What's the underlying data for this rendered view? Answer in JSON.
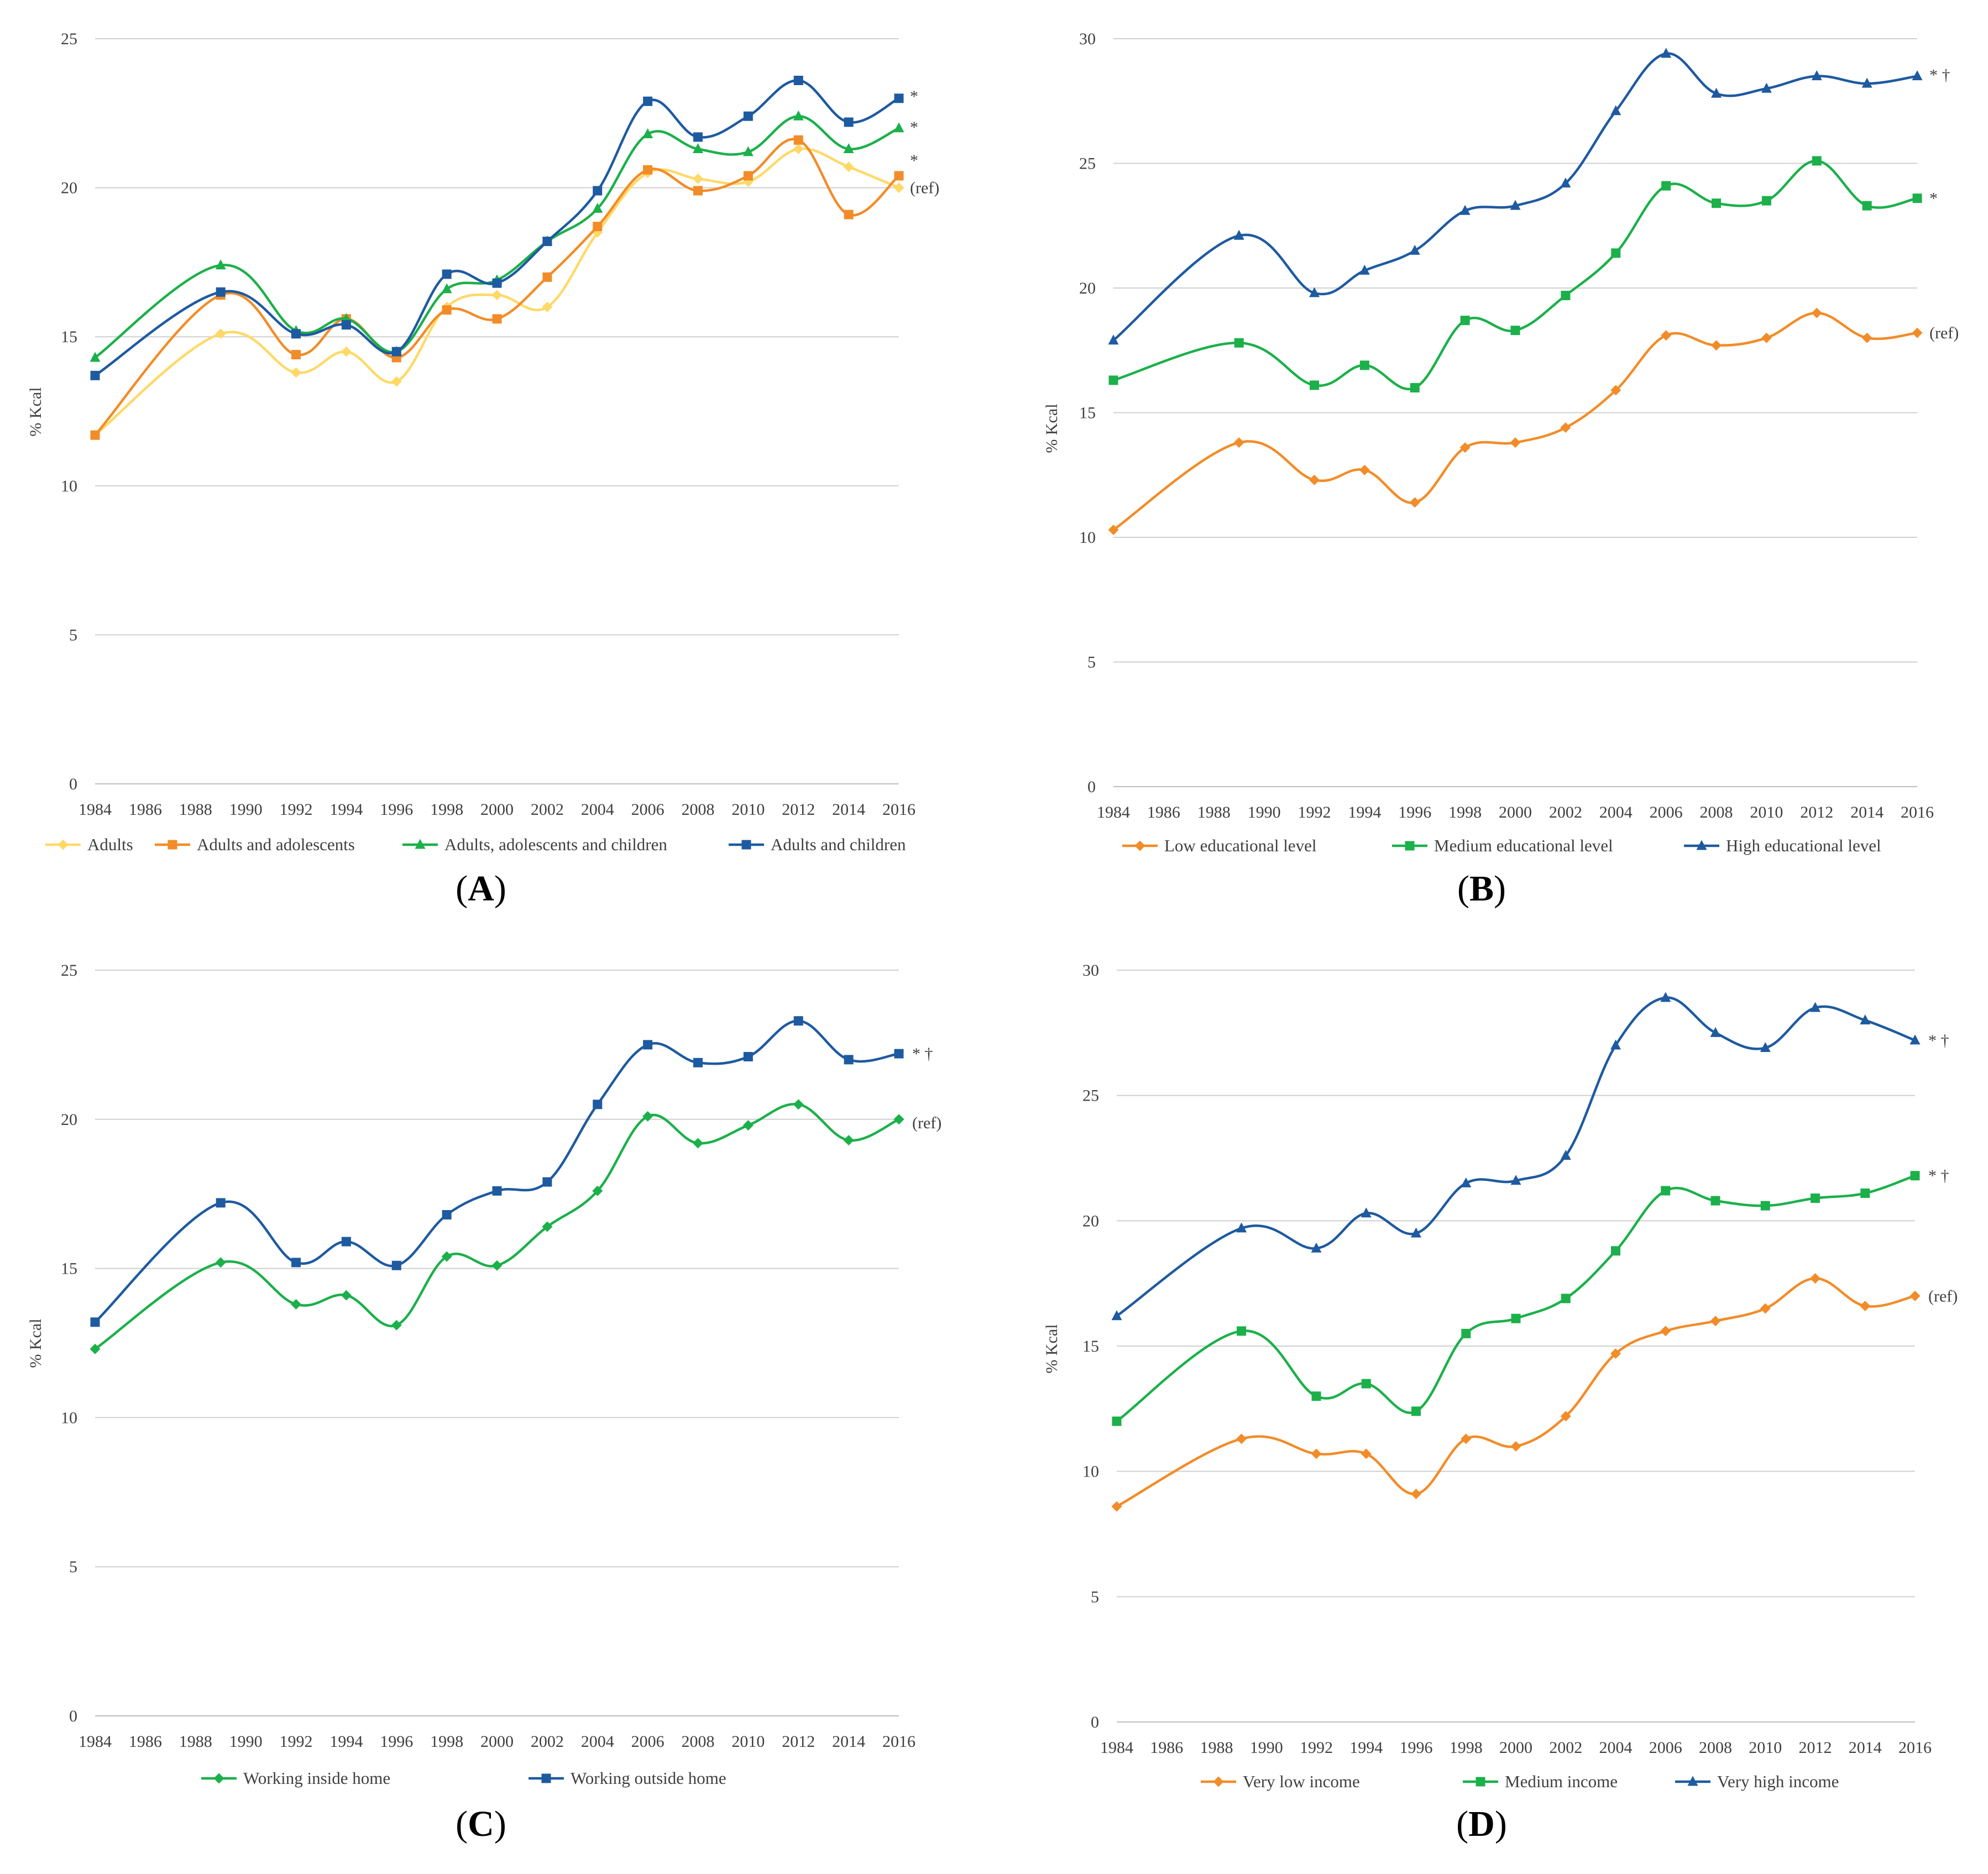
{
  "years": [
    "1984",
    "1986",
    "1988",
    "1990",
    "1992",
    "1994",
    "1996",
    "1998",
    "2000",
    "2002",
    "2004",
    "2006",
    "2008",
    "2010",
    "2012",
    "2014",
    "2016"
  ],
  "chart_data": [
    {
      "id": "A",
      "type": "line",
      "panel_label": "A",
      "ylabel": "% Kcal",
      "ylim": [
        0,
        25
      ],
      "yticks": [
        "0",
        "5",
        "10",
        "15",
        "20",
        "25"
      ],
      "xlim": [
        1984,
        2016
      ],
      "annotations": [
        "*",
        "*",
        "*",
        "(ref)"
      ],
      "series": [
        {
          "name": "Adults",
          "color": "#FFD966",
          "marker": "diamond",
          "x": [
            1984,
            1989,
            1992,
            1994,
            1996,
            1998,
            2000,
            2002,
            2004,
            2006,
            2008,
            2010,
            2012,
            2014,
            2016
          ],
          "values": [
            11.7,
            15.1,
            13.8,
            14.5,
            13.5,
            16.0,
            16.4,
            16.0,
            18.5,
            20.5,
            20.3,
            20.2,
            21.3,
            20.7,
            20.0
          ],
          "end_label": "(ref)"
        },
        {
          "name": "Adults and adolescents",
          "color": "#F28C28",
          "marker": "square",
          "x": [
            1984,
            1989,
            1992,
            1994,
            1996,
            1998,
            2000,
            2002,
            2004,
            2006,
            2008,
            2010,
            2012,
            2014,
            2016
          ],
          "values": [
            11.7,
            16.4,
            14.4,
            15.6,
            14.3,
            15.9,
            15.6,
            17.0,
            18.7,
            20.6,
            19.9,
            20.4,
            21.6,
            19.1,
            20.4
          ],
          "end_label": "*"
        },
        {
          "name": "Adults, adolescents and children",
          "color": "#1BB04A",
          "marker": "triangle",
          "x": [
            1984,
            1989,
            1992,
            1994,
            1996,
            1998,
            2000,
            2002,
            2004,
            2006,
            2008,
            2010,
            2012,
            2014,
            2016
          ],
          "values": [
            14.3,
            17.4,
            15.2,
            15.6,
            14.5,
            16.6,
            16.9,
            18.2,
            19.3,
            21.8,
            21.3,
            21.2,
            22.4,
            21.3,
            22.0
          ],
          "end_label": "*"
        },
        {
          "name": "Adults and children",
          "color": "#1E5AA0",
          "marker": "square",
          "x": [
            1984,
            1989,
            1992,
            1994,
            1996,
            1998,
            2000,
            2002,
            2004,
            2006,
            2008,
            2010,
            2012,
            2014,
            2016
          ],
          "values": [
            13.7,
            16.5,
            15.1,
            15.4,
            14.5,
            17.1,
            16.8,
            18.2,
            19.9,
            22.9,
            21.7,
            22.4,
            23.6,
            22.2,
            23.0
          ],
          "end_label": "*"
        }
      ]
    },
    {
      "id": "B",
      "type": "line",
      "panel_label": "B",
      "ylabel": "% Kcal",
      "ylim": [
        0,
        30
      ],
      "yticks": [
        "0",
        "5",
        "10",
        "15",
        "20",
        "25",
        "30"
      ],
      "xlim": [
        1984,
        2016
      ],
      "annotations": [
        "* †",
        "*",
        "(ref)"
      ],
      "series": [
        {
          "name": "Low educational level",
          "color": "#F28C28",
          "marker": "diamond",
          "x": [
            1984,
            1989,
            1992,
            1994,
            1996,
            1998,
            2000,
            2002,
            2004,
            2006,
            2008,
            2010,
            2012,
            2014,
            2016
          ],
          "values": [
            10.3,
            13.8,
            12.3,
            12.7,
            11.4,
            13.6,
            13.8,
            14.4,
            15.9,
            18.1,
            17.7,
            18.0,
            19.0,
            18.0,
            18.2
          ],
          "end_label": "(ref)"
        },
        {
          "name": "Medium educational level",
          "color": "#1BB04A",
          "marker": "square",
          "x": [
            1984,
            1989,
            1992,
            1994,
            1996,
            1998,
            2000,
            2002,
            2004,
            2006,
            2008,
            2010,
            2012,
            2014,
            2016
          ],
          "values": [
            16.3,
            17.8,
            16.1,
            16.9,
            16.0,
            18.7,
            18.3,
            19.7,
            21.4,
            24.1,
            23.4,
            23.5,
            25.1,
            23.3,
            23.6
          ],
          "end_label": "*"
        },
        {
          "name": "High educational level",
          "color": "#1E5AA0",
          "marker": "triangle",
          "x": [
            1984,
            1989,
            1992,
            1994,
            1996,
            1998,
            2000,
            2002,
            2004,
            2006,
            2008,
            2010,
            2012,
            2014,
            2016
          ],
          "values": [
            17.9,
            22.1,
            19.8,
            20.7,
            21.5,
            23.1,
            23.3,
            24.2,
            27.1,
            29.4,
            27.8,
            28.0,
            28.5,
            28.2,
            28.5
          ],
          "end_label": "* †"
        }
      ]
    },
    {
      "id": "C",
      "type": "line",
      "panel_label": "C",
      "ylabel": "% Kcal",
      "ylim": [
        0,
        25
      ],
      "yticks": [
        "0",
        "5",
        "10",
        "15",
        "20",
        "25"
      ],
      "xlim": [
        1984,
        2016
      ],
      "annotations": [
        "* †",
        "(ref)"
      ],
      "series": [
        {
          "name": "Working inside home",
          "color": "#1BB04A",
          "marker": "diamond",
          "x": [
            1984,
            1989,
            1992,
            1994,
            1996,
            1998,
            2000,
            2002,
            2004,
            2006,
            2008,
            2010,
            2012,
            2014,
            2016
          ],
          "values": [
            12.3,
            15.2,
            13.8,
            14.1,
            13.1,
            15.4,
            15.1,
            16.4,
            17.6,
            20.1,
            19.2,
            19.8,
            20.5,
            19.3,
            20.0
          ],
          "end_label": "(ref)"
        },
        {
          "name": "Working outside home",
          "color": "#1E5AA0",
          "marker": "square",
          "x": [
            1984,
            1989,
            1992,
            1994,
            1996,
            1998,
            2000,
            2002,
            2004,
            2006,
            2008,
            2010,
            2012,
            2014,
            2016
          ],
          "values": [
            13.2,
            17.2,
            15.2,
            15.9,
            15.1,
            16.8,
            17.6,
            17.9,
            20.5,
            22.5,
            21.9,
            22.1,
            23.3,
            22.0,
            22.2
          ],
          "end_label": "* †"
        }
      ]
    },
    {
      "id": "D",
      "type": "line",
      "panel_label": "D",
      "ylabel": "% Kcal",
      "ylim": [
        0,
        30
      ],
      "yticks": [
        "0",
        "5",
        "10",
        "15",
        "20",
        "25",
        "30"
      ],
      "xlim": [
        1984,
        2016
      ],
      "annotations": [
        "* †",
        "* †",
        "(ref)"
      ],
      "series": [
        {
          "name": "Very low income",
          "color": "#F28C28",
          "marker": "diamond",
          "x": [
            1984,
            1989,
            1992,
            1994,
            1996,
            1998,
            2000,
            2002,
            2004,
            2006,
            2008,
            2010,
            2012,
            2014,
            2016
          ],
          "values": [
            8.6,
            11.3,
            10.7,
            10.7,
            9.1,
            11.3,
            11.0,
            12.2,
            14.7,
            15.6,
            16.0,
            16.5,
            17.7,
            16.6,
            17.0
          ],
          "end_label": "(ref)"
        },
        {
          "name": "Medium income",
          "color": "#1BB04A",
          "marker": "square",
          "x": [
            1984,
            1989,
            1992,
            1994,
            1996,
            1998,
            2000,
            2002,
            2004,
            2006,
            2008,
            2010,
            2012,
            2014,
            2016
          ],
          "values": [
            12.0,
            15.6,
            13.0,
            13.5,
            12.4,
            15.5,
            16.1,
            16.9,
            18.8,
            21.2,
            20.8,
            20.6,
            20.9,
            21.1,
            21.8
          ],
          "end_label": "* †"
        },
        {
          "name": "Very high income",
          "color": "#1E5AA0",
          "marker": "triangle",
          "x": [
            1984,
            1989,
            1992,
            1994,
            1996,
            1998,
            2000,
            2002,
            2004,
            2006,
            2008,
            2010,
            2012,
            2014,
            2016
          ],
          "values": [
            16.2,
            19.7,
            18.9,
            20.3,
            19.5,
            21.5,
            21.6,
            22.6,
            27.0,
            28.9,
            27.5,
            26.9,
            28.5,
            28.0,
            27.2
          ],
          "end_label": "* †"
        }
      ]
    }
  ]
}
